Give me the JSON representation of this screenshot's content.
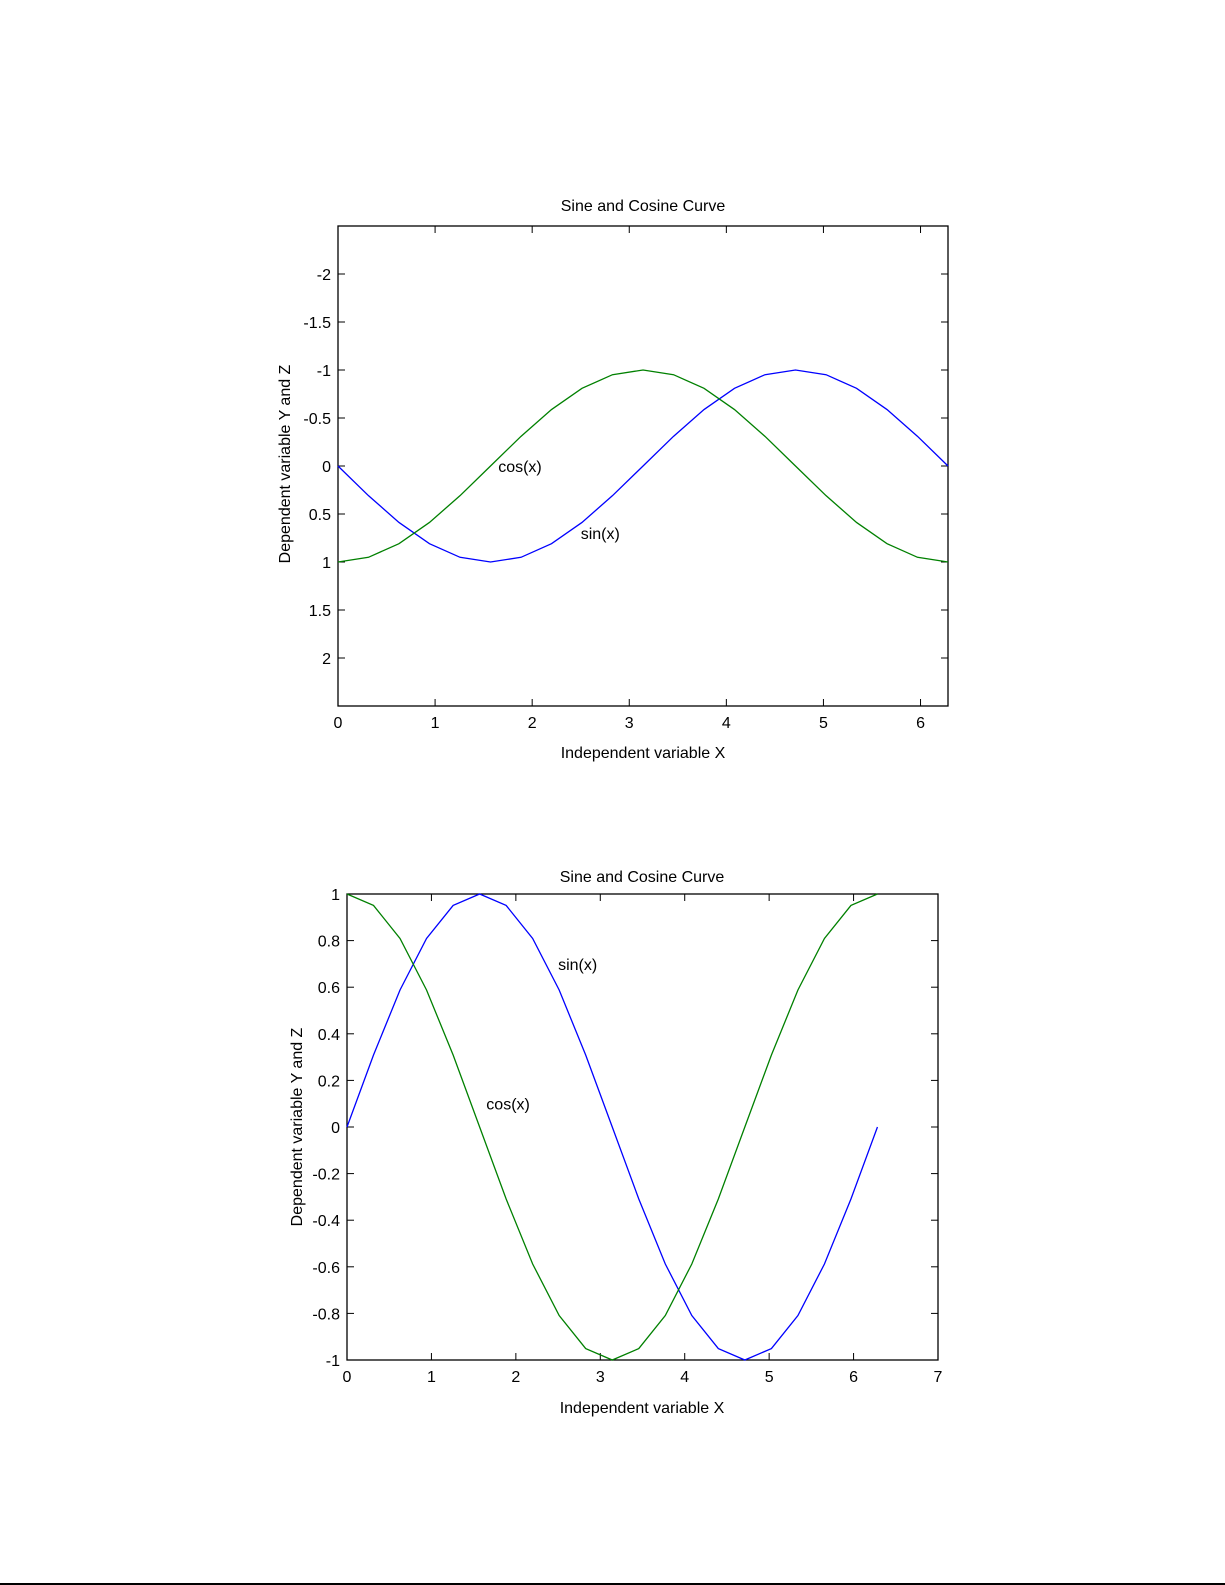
{
  "colors": {
    "sin": "#0000ff",
    "cos": "#008000",
    "axes": "#000000"
  },
  "chart_data": [
    {
      "type": "line",
      "title": "Sine and Cosine Curve",
      "xlabel": "Independent variable X",
      "ylabel": "Dependent variable Y and Z",
      "xlim": [
        0,
        6.283
      ],
      "ylim": [
        -2.5,
        2.5
      ],
      "y_reversed": true,
      "grid": false,
      "xticks": [
        0,
        1,
        2,
        3,
        4,
        5,
        6
      ],
      "yticks": [
        -2,
        -1.5,
        -1,
        -0.5,
        0,
        0.5,
        1,
        1.5,
        2
      ],
      "series": [
        {
          "name": "sin(x)",
          "color": "#0000ff",
          "x": [
            0,
            0.314,
            0.628,
            0.942,
            1.257,
            1.571,
            1.885,
            2.199,
            2.513,
            2.827,
            3.142,
            3.456,
            3.77,
            4.084,
            4.398,
            4.712,
            5.027,
            5.341,
            5.655,
            5.969,
            6.283
          ],
          "y": [
            0,
            0.309,
            0.588,
            0.809,
            0.951,
            1,
            0.951,
            0.809,
            0.588,
            0.309,
            0,
            -0.309,
            -0.588,
            -0.809,
            -0.951,
            -1,
            -0.951,
            -0.809,
            -0.588,
            -0.309,
            0
          ]
        },
        {
          "name": "cos(x)",
          "color": "#008000",
          "x": [
            0,
            0.314,
            0.628,
            0.942,
            1.257,
            1.571,
            1.885,
            2.199,
            2.513,
            2.827,
            3.142,
            3.456,
            3.77,
            4.084,
            4.398,
            4.712,
            5.027,
            5.341,
            5.655,
            5.969,
            6.283
          ],
          "y": [
            1,
            0.951,
            0.809,
            0.588,
            0.309,
            0,
            -0.309,
            -0.588,
            -0.809,
            -0.951,
            -1,
            -0.951,
            -0.809,
            -0.588,
            -0.309,
            0,
            0.309,
            0.588,
            0.809,
            0.951,
            1
          ]
        }
      ],
      "annotations": [
        {
          "text": "cos(x)",
          "x": 1.65,
          "y": 0
        },
        {
          "text": "sin(x)",
          "x": 2.5,
          "y": 0.7
        }
      ]
    },
    {
      "type": "line",
      "title": "Sine and Cosine Curve",
      "xlabel": "Independent variable X",
      "ylabel": "Dependent variable Y and Z",
      "xlim": [
        0,
        7
      ],
      "ylim": [
        -1,
        1
      ],
      "y_reversed": false,
      "grid": false,
      "xticks": [
        0,
        1,
        2,
        3,
        4,
        5,
        6,
        7
      ],
      "yticks": [
        -1,
        -0.8,
        -0.6,
        -0.4,
        -0.2,
        0,
        0.2,
        0.4,
        0.6,
        0.8,
        1
      ],
      "series": [
        {
          "name": "sin(x)",
          "color": "#0000ff",
          "x": [
            0,
            0.314,
            0.628,
            0.942,
            1.257,
            1.571,
            1.885,
            2.199,
            2.513,
            2.827,
            3.142,
            3.456,
            3.77,
            4.084,
            4.398,
            4.712,
            5.027,
            5.341,
            5.655,
            5.969,
            6.283
          ],
          "y": [
            0,
            0.309,
            0.588,
            0.809,
            0.951,
            1,
            0.951,
            0.809,
            0.588,
            0.309,
            0,
            -0.309,
            -0.588,
            -0.809,
            -0.951,
            -1,
            -0.951,
            -0.809,
            -0.588,
            -0.309,
            0
          ]
        },
        {
          "name": "cos(x)",
          "color": "#008000",
          "x": [
            0,
            0.314,
            0.628,
            0.942,
            1.257,
            1.571,
            1.885,
            2.199,
            2.513,
            2.827,
            3.142,
            3.456,
            3.77,
            4.084,
            4.398,
            4.712,
            5.027,
            5.341,
            5.655,
            5.969,
            6.283
          ],
          "y": [
            1,
            0.951,
            0.809,
            0.588,
            0.309,
            0,
            -0.309,
            -0.588,
            -0.809,
            -0.951,
            -1,
            -0.951,
            -0.809,
            -0.588,
            -0.309,
            0,
            0.309,
            0.588,
            0.809,
            0.951,
            1
          ]
        }
      ],
      "annotations": [
        {
          "text": "sin(x)",
          "x": 2.5,
          "y": 0.7
        },
        {
          "text": "cos(x)",
          "x": 1.65,
          "y": 0.1
        }
      ]
    }
  ]
}
